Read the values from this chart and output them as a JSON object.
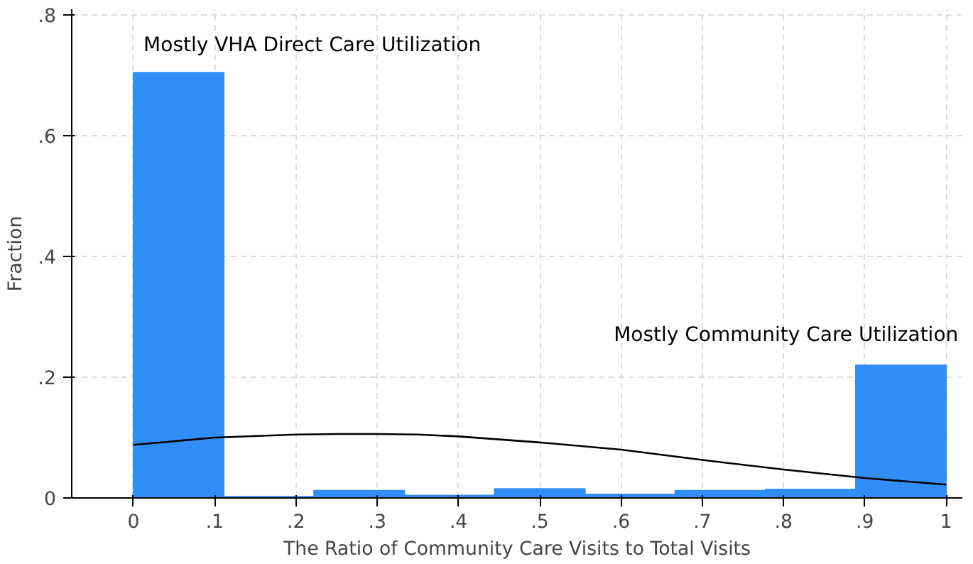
{
  "chart_data": {
    "type": "histogram",
    "xlabel": "The Ratio of Community Care Visits to Total Visits",
    "ylabel": "Fraction",
    "bins": [
      0,
      0.1111,
      0.2222,
      0.3333,
      0.4444,
      0.5556,
      0.6667,
      0.7778,
      0.8889,
      1
    ],
    "values": [
      0.705,
      0.002,
      0.012,
      0.004,
      0.015,
      0.006,
      0.012,
      0.014,
      0.22
    ],
    "color": "#318ef6",
    "series": [
      {
        "type": "line",
        "color": "#000000",
        "x": [
          0,
          0.1,
          0.2,
          0.25,
          0.3,
          0.35,
          0.4,
          0.5,
          0.6,
          0.7,
          0.8,
          0.9,
          1
        ],
        "values": [
          0.088,
          0.1,
          0.105,
          0.106,
          0.106,
          0.105,
          0.102,
          0.092,
          0.08,
          0.063,
          0.047,
          0.033,
          0.022
        ]
      }
    ],
    "annotations": [
      "Mostly VHA Direct Care Utilization",
      "Mostly Community Care Utilization"
    ],
    "xlim": [
      -0.076,
      1.02
    ],
    "ylim": [
      0,
      0.81
    ],
    "xticks": [
      {
        "value": 0,
        "label": "0"
      },
      {
        "value": 0.1,
        "label": ".1"
      },
      {
        "value": 0.2,
        "label": ".2"
      },
      {
        "value": 0.3,
        "label": ".3"
      },
      {
        "value": 0.4,
        "label": ".4"
      },
      {
        "value": 0.5,
        "label": ".5"
      },
      {
        "value": 0.6,
        "label": ".6"
      },
      {
        "value": 0.7,
        "label": ".7"
      },
      {
        "value": 0.8,
        "label": ".8"
      },
      {
        "value": 0.9,
        "label": ".9"
      },
      {
        "value": 1,
        "label": "1"
      }
    ],
    "yticks": [
      {
        "value": 0,
        "label": "0"
      },
      {
        "value": 0.2,
        "label": ".2"
      },
      {
        "value": 0.4,
        "label": ".4"
      },
      {
        "value": 0.6,
        "label": ".6"
      },
      {
        "value": 0.8,
        "label": ".8"
      }
    ],
    "grid": true,
    "line_style": "solid",
    "marker": "none"
  }
}
